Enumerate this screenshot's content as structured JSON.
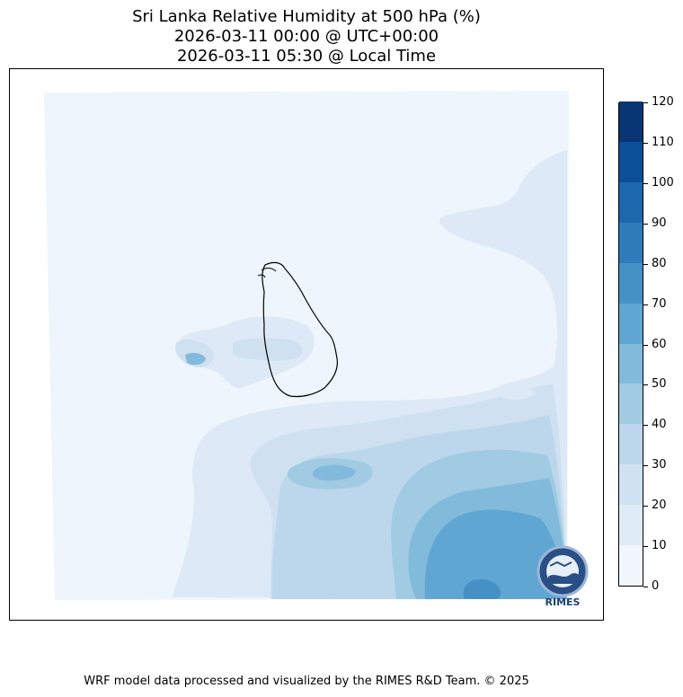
{
  "title": {
    "line1": "Sri Lanka Relative Humidity at 500 hPa (%)",
    "line2": "2026-03-11 00:00 @ UTC+00:00",
    "line3": "2026-03-11 05:30 @ Local Time"
  },
  "colorbar": {
    "levels": [
      "0",
      "10",
      "20",
      "30",
      "40",
      "50",
      "60",
      "70",
      "80",
      "90",
      "100",
      "110",
      "120"
    ],
    "colors": [
      "#f1f6fc",
      "#dfebf7",
      "#d0e2f2",
      "#bcd7eb",
      "#a0cbe2",
      "#82badc",
      "#60a6d2",
      "#4591c6",
      "#2f7cbb",
      "#1d67ae",
      "#0c4f99",
      "#083674"
    ]
  },
  "logo": {
    "name": "RIMES",
    "icon": "rimes-logo-icon"
  },
  "footer": "WRF model data processed and visualized by the RIMES R&D Team. © 2025"
}
